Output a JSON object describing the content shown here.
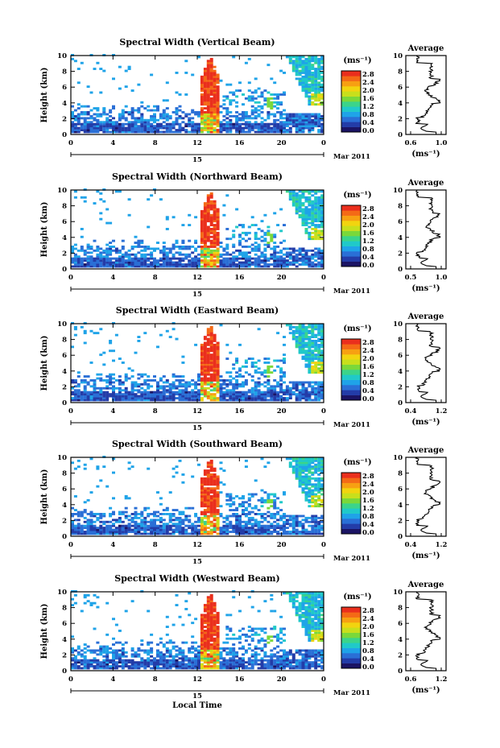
{
  "figure": {
    "xlabel": "Local Time",
    "date_label": "Mar 2011",
    "day_label": "15",
    "ylabel": "Height (km)",
    "cbar_unit": "(ms⁻¹)",
    "avg_title": "Average",
    "avg_xlabel": "(ms⁻¹)"
  },
  "colorbar": {
    "ticks": [
      "2.8",
      "2.4",
      "2.0",
      "1.6",
      "1.2",
      "0.8",
      "0.4",
      "0.0"
    ],
    "colors": [
      "#1b1464",
      "#233ca8",
      "#2a6fd6",
      "#1fa3e8",
      "#20c9c9",
      "#3bd48a",
      "#7ad83a",
      "#c8df1c",
      "#f2d40f",
      "#f7a012",
      "#f46a16",
      "#ea2f1d"
    ]
  },
  "chart_data": [
    {
      "type": "heatmap",
      "title": "Spectral Width (Vertical Beam)",
      "x_ticks": [
        "0",
        "4",
        "8",
        "12",
        "16",
        "20",
        "0"
      ],
      "y_ticks": [
        "0",
        "2",
        "4",
        "6",
        "8",
        "10"
      ],
      "xlim": [
        0,
        24
      ],
      "ylim": [
        0,
        10
      ],
      "avg_x_ticks": [
        "0.6",
        "1.0"
      ],
      "avg_y_ticks": [
        "0",
        "2",
        "4",
        "6",
        "8",
        "10"
      ]
    },
    {
      "type": "heatmap",
      "title": "Spectral Width (Northward Beam)",
      "x_ticks": [
        "0",
        "4",
        "8",
        "12",
        "16",
        "20",
        "0"
      ],
      "y_ticks": [
        "0",
        "2",
        "4",
        "6",
        "8",
        "10"
      ],
      "xlim": [
        0,
        24
      ],
      "ylim": [
        0,
        10
      ],
      "avg_x_ticks": [
        "0.5",
        "1.0"
      ],
      "avg_y_ticks": [
        "0",
        "2",
        "4",
        "6",
        "8",
        "10"
      ]
    },
    {
      "type": "heatmap",
      "title": "Spectral Width (Eastward Beam)",
      "x_ticks": [
        "0",
        "4",
        "8",
        "12",
        "16",
        "20",
        "0"
      ],
      "y_ticks": [
        "0",
        "2",
        "4",
        "6",
        "8",
        "10"
      ],
      "xlim": [
        0,
        24
      ],
      "ylim": [
        0,
        10
      ],
      "avg_x_ticks": [
        "0.4",
        "1.2"
      ],
      "avg_y_ticks": [
        "0",
        "2",
        "4",
        "6",
        "8",
        "10"
      ]
    },
    {
      "type": "heatmap",
      "title": "Spectral Width (Southward Beam)",
      "x_ticks": [
        "0",
        "4",
        "8",
        "12",
        "16",
        "20",
        "0"
      ],
      "y_ticks": [
        "0",
        "2",
        "4",
        "6",
        "8",
        "10"
      ],
      "xlim": [
        0,
        24
      ],
      "ylim": [
        0,
        10
      ],
      "avg_x_ticks": [
        "0.4",
        "1.2"
      ],
      "avg_y_ticks": [
        "0",
        "2",
        "4",
        "6",
        "8",
        "10"
      ]
    },
    {
      "type": "heatmap",
      "title": "Spectral Width (Westward Beam)",
      "x_ticks": [
        "0",
        "4",
        "8",
        "12",
        "16",
        "20",
        "0"
      ],
      "y_ticks": [
        "0",
        "2",
        "4",
        "6",
        "8",
        "10"
      ],
      "xlim": [
        0,
        24
      ],
      "ylim": [
        0,
        10
      ],
      "avg_x_ticks": [
        "0.6",
        "1.2"
      ],
      "avg_y_ticks": [
        "0",
        "2",
        "4",
        "6",
        "8",
        "10"
      ]
    }
  ]
}
